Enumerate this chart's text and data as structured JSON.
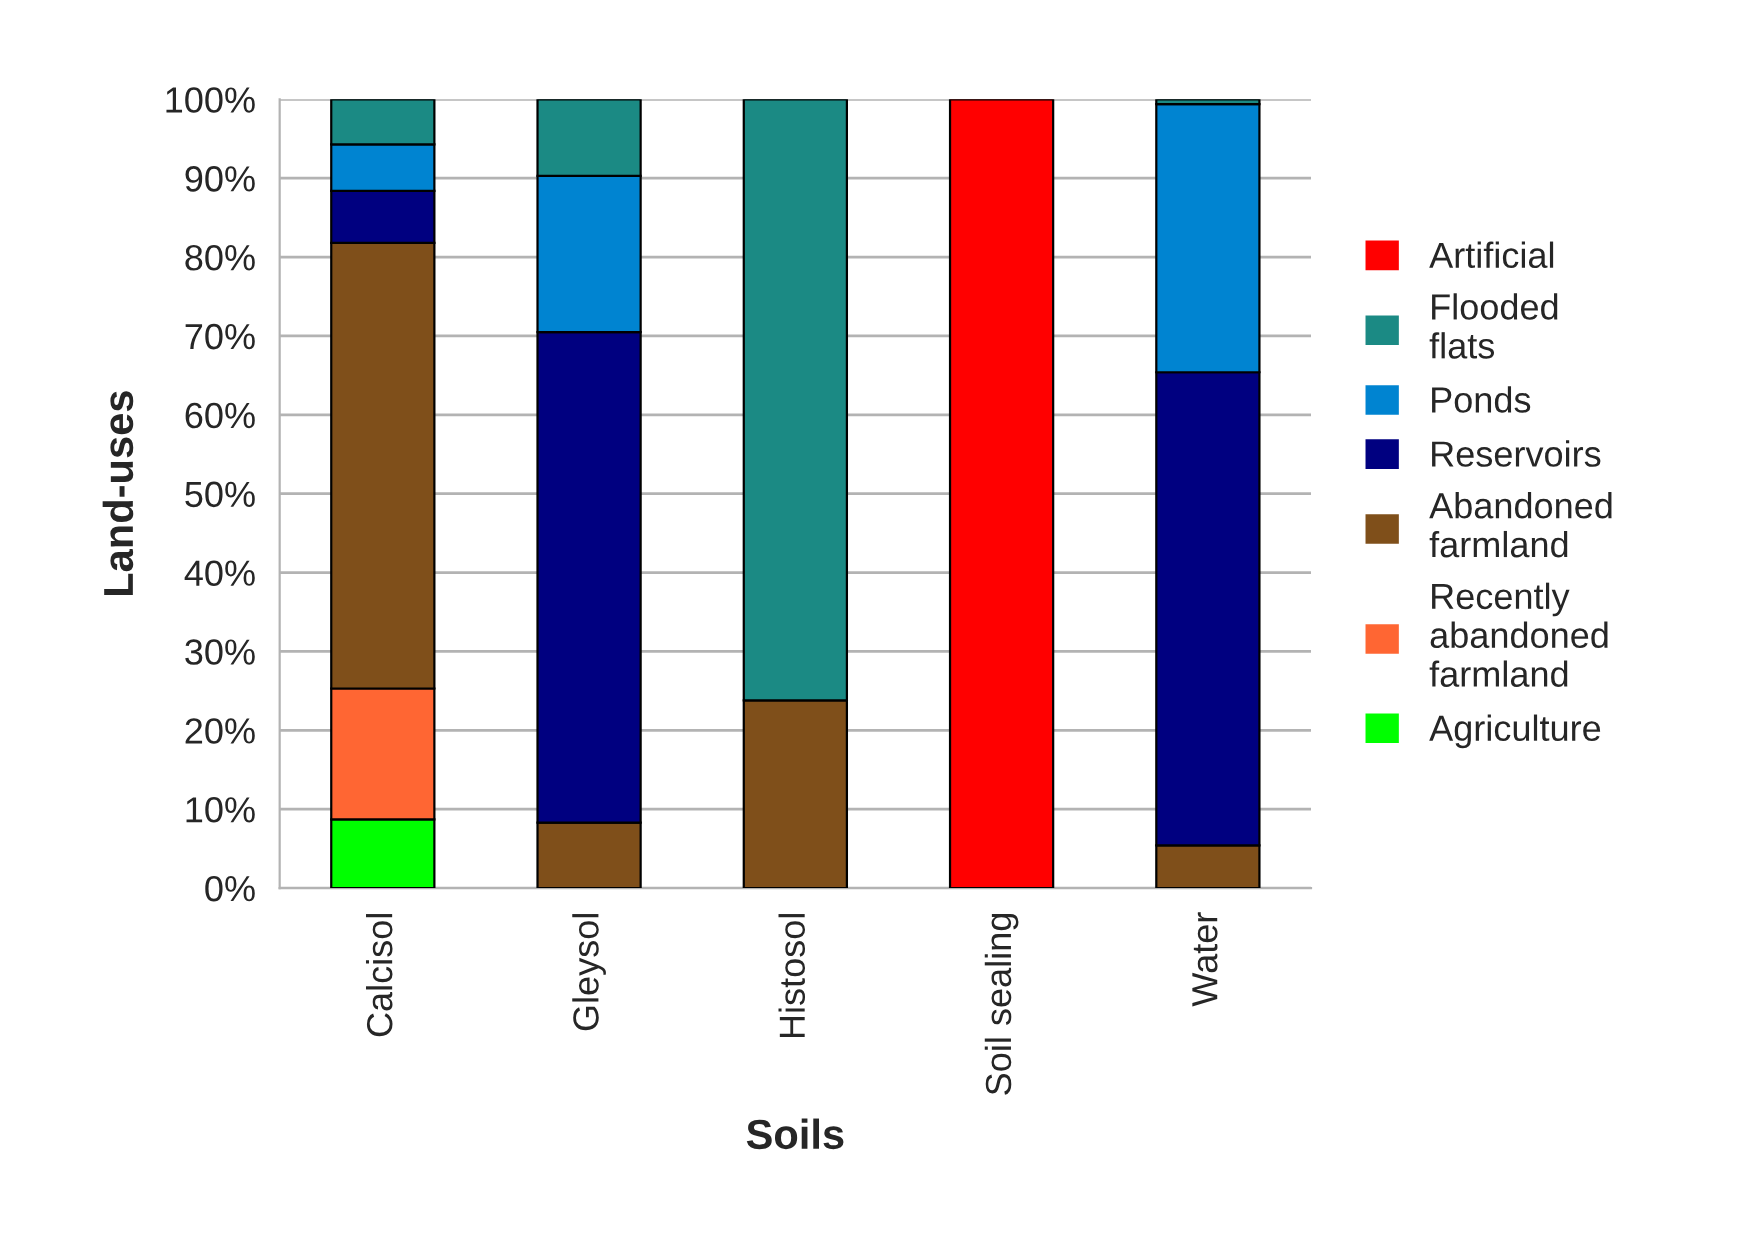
{
  "chart_data": {
    "type": "bar",
    "stacked": true,
    "xlabel": "Soils",
    "ylabel": "Land-uses",
    "categories": [
      "Calcisol",
      "Gleysol",
      "Histosol",
      "Soil sealing",
      "Water"
    ],
    "series": [
      {
        "name": "Agriculture",
        "color": "#00ff00",
        "values": [
          8.7,
          null,
          null,
          null,
          null
        ]
      },
      {
        "name": "Recently abandoned farmland",
        "color": "#ff6633",
        "values": [
          16.6,
          null,
          null,
          null,
          null
        ]
      },
      {
        "name": "Abandoned farmland",
        "color": "#7f4f1a",
        "values": [
          56.5,
          8.3,
          23.8,
          null,
          5.4
        ]
      },
      {
        "name": "Reservoirs",
        "color": "#000080",
        "values": [
          6.6,
          62.2,
          null,
          null,
          60.0
        ]
      },
      {
        "name": "Ponds",
        "color": "#0084d1",
        "values": [
          5.9,
          19.8,
          null,
          null,
          34.0
        ]
      },
      {
        "name": "Flooded flats",
        "color": "#1b8a84",
        "values": [
          5.7,
          9.7,
          76.2,
          null,
          0.6
        ]
      },
      {
        "name": "Artificial",
        "color": "#ff0000",
        "values": [
          null,
          null,
          null,
          100,
          null
        ]
      }
    ],
    "ylim": [
      0,
      100
    ],
    "yticks": [
      {
        "value": 0,
        "label": "0%"
      },
      {
        "value": 10,
        "label": "10%"
      },
      {
        "value": 20,
        "label": "20%"
      },
      {
        "value": 30,
        "label": "30%"
      },
      {
        "value": 40,
        "label": "40%"
      },
      {
        "value": 50,
        "label": "50%"
      },
      {
        "value": 60,
        "label": "60%"
      },
      {
        "value": 70,
        "label": "70%"
      },
      {
        "value": 80,
        "label": "80%"
      },
      {
        "value": 90,
        "label": "90%"
      },
      {
        "value": 100,
        "label": "100%"
      }
    ],
    "grid": "y",
    "legend": "right"
  }
}
